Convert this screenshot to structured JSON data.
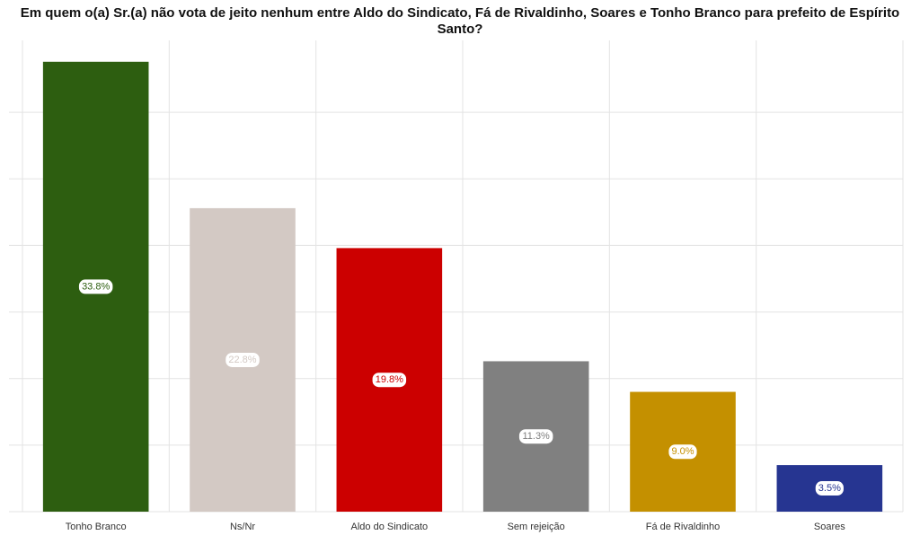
{
  "chart_data": {
    "type": "bar",
    "title": "Em quem o(a) Sr.(a) não vota de jeito nenhum entre Aldo do Sindicato, Fá de Rivaldinho, Soares e Tonho Branco para prefeito de Espírito Santo?",
    "categories": [
      "Tonho Branco",
      "Ns/Nr",
      "Aldo do Sindicato",
      "Sem rejeição",
      "Fá de Rivaldinho",
      "Soares"
    ],
    "values": [
      33.8,
      22.8,
      19.8,
      11.3,
      9.0,
      3.5
    ],
    "value_labels": [
      "33.8%",
      "22.8%",
      "19.8%",
      "11.3%",
      "9.0%",
      "3.5%"
    ],
    "colors": [
      "#2d5e10",
      "#d3c9c4",
      "#cc0000",
      "#808080",
      "#c49000",
      "#263591"
    ],
    "ylim": [
      0,
      35
    ],
    "yticks": [
      0,
      5,
      10,
      15,
      20,
      25,
      30
    ],
    "grid": true
  }
}
